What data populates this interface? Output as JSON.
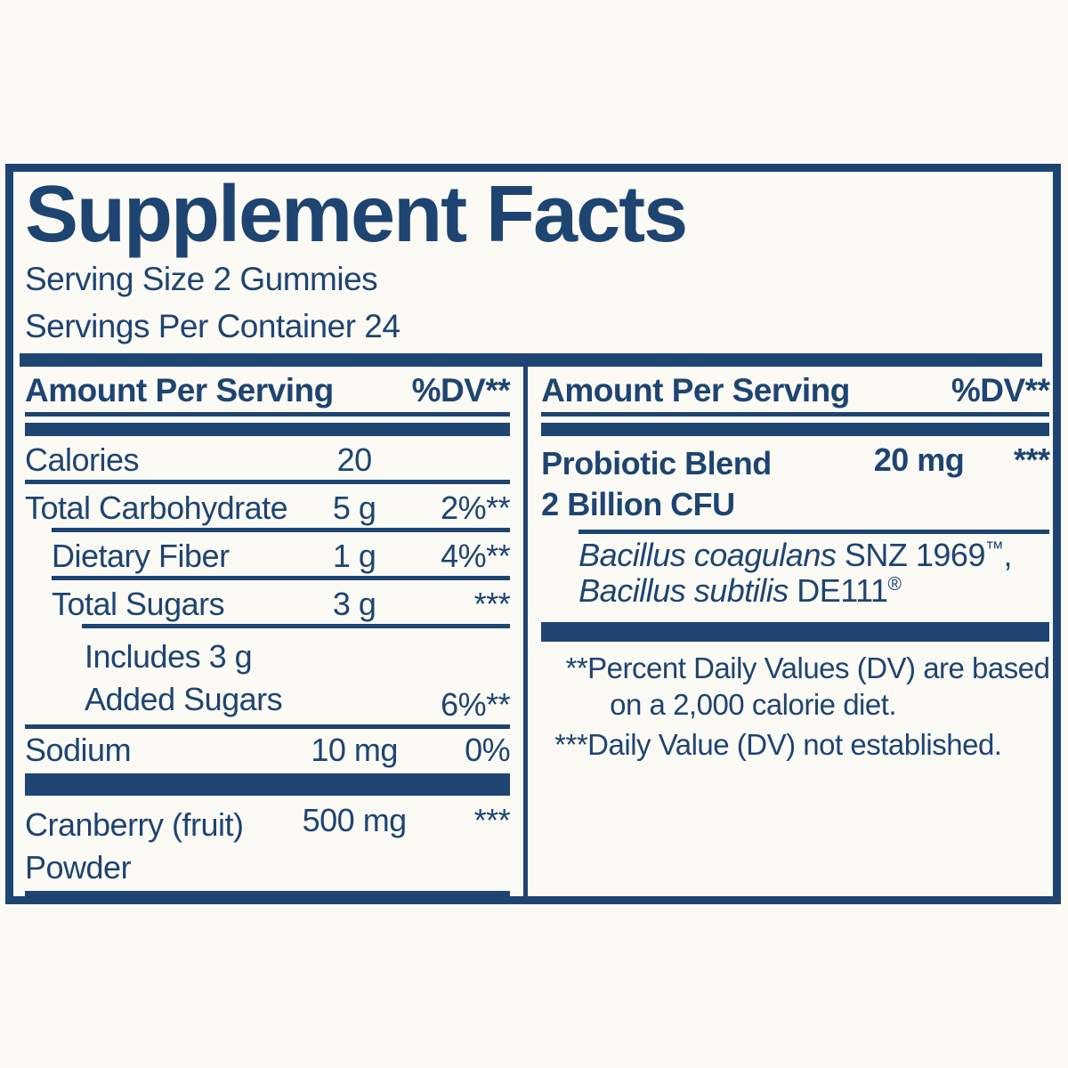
{
  "colors": {
    "navy": "#1e4471",
    "paper": "#fbfaf5"
  },
  "header": {
    "title": "Supplement Facts",
    "serving_size": "Serving Size 2 Gummies",
    "servings_per_container": "Servings Per Container 24"
  },
  "table": {
    "column_header": {
      "amount": "Amount Per Serving",
      "dv": "%DV**"
    },
    "left": {
      "rows": [
        {
          "label": "Calories",
          "amount": "20",
          "dv": ""
        },
        {
          "label": "Total Carbohydrate",
          "amount": "5 g",
          "dv": "2%**"
        },
        {
          "label": "Dietary Fiber",
          "amount": "1 g",
          "dv": "4%**"
        },
        {
          "label": "Total Sugars",
          "amount": "3 g",
          "dv": "***"
        },
        {
          "label_line1": "Includes 3 g",
          "label_line2": "Added Sugars",
          "amount": "",
          "dv": "6%**"
        },
        {
          "label": "Sodium",
          "amount": "10 mg",
          "dv": "0%"
        },
        {
          "label_line1": "Cranberry (fruit)",
          "label_line2": "Powder",
          "amount": "500 mg",
          "dv": "***"
        }
      ]
    },
    "right": {
      "blend": {
        "name_line1": "Probiotic Blend",
        "name_line2": "2 Billion CFU",
        "amount": "20 mg",
        "dv": "***"
      },
      "strains": [
        {
          "species": "Bacillus coagulans",
          "code": "SNZ 1969",
          "mark": "™",
          "suffix": ","
        },
        {
          "species": "Bacillus subtilis",
          "code": "DE111",
          "mark": "®",
          "suffix": ""
        }
      ],
      "footnotes": [
        {
          "marker": "**",
          "line1": "Percent Daily Values (DV) are based",
          "line2": "on a 2,000 calorie diet."
        },
        {
          "marker": "***",
          "line1": "Daily Value (DV) not established.",
          "line2": ""
        }
      ]
    }
  }
}
